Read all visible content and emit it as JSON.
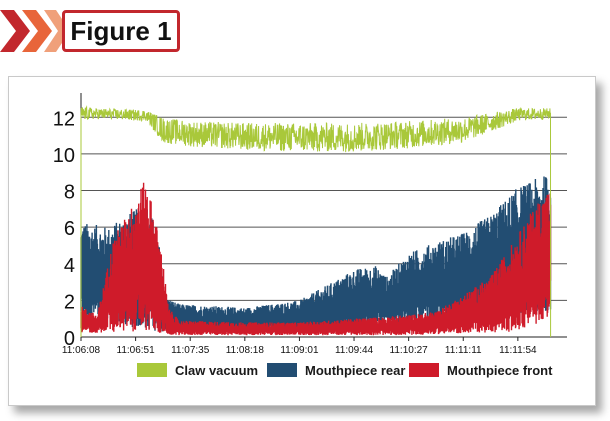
{
  "figure": {
    "label": "Figure 1"
  },
  "colors": {
    "claw": "#a9c83a",
    "rear": "#224d72",
    "front": "#cf1b2a",
    "accent": "#c2272d",
    "chevron_dark": "#c2272d",
    "chevron_light": "#f0a07a",
    "grid": "#555555"
  },
  "chart_data": {
    "type": "line",
    "title": "",
    "xlabel": "",
    "ylabel": "",
    "ylim": [
      0,
      13
    ],
    "yticks": [
      0,
      2,
      4,
      6,
      8,
      10,
      12
    ],
    "grid": true,
    "legend_position": "bottom",
    "x_ticks": [
      "11:06:08",
      "11:06:51",
      "11:07:35",
      "11:08:18",
      "11:09:01",
      "11:09:44",
      "11:10:27",
      "11:11:11",
      "11:11:54"
    ],
    "series": [
      {
        "name": "Claw vacuum",
        "color_key": "claw",
        "style": "line",
        "envelope_min": [
          [
            0,
            11.8
          ],
          [
            0.3,
            11.9
          ],
          [
            1.2,
            11.8
          ],
          [
            1.5,
            10.6
          ],
          [
            2.0,
            10.4
          ],
          [
            3.0,
            10.2
          ],
          [
            4.0,
            10.1
          ],
          [
            5.0,
            10.1
          ],
          [
            6.0,
            10.3
          ],
          [
            7.0,
            10.6
          ],
          [
            8.0,
            11.8
          ],
          [
            8.6,
            11.9
          ]
        ],
        "envelope_max": [
          [
            0,
            12.6
          ],
          [
            0.3,
            12.5
          ],
          [
            1.2,
            12.4
          ],
          [
            1.5,
            12.0
          ],
          [
            2.0,
            11.8
          ],
          [
            3.0,
            11.7
          ],
          [
            4.0,
            11.7
          ],
          [
            5.0,
            11.7
          ],
          [
            6.0,
            11.8
          ],
          [
            7.0,
            12.0
          ],
          [
            8.0,
            12.5
          ],
          [
            8.6,
            12.5
          ]
        ]
      },
      {
        "name": "Mouthpiece rear",
        "color_key": "rear",
        "style": "area",
        "envelope_min": [
          [
            0,
            0.8
          ],
          [
            0.5,
            0.8
          ],
          [
            1.0,
            0.5
          ],
          [
            1.4,
            0.3
          ],
          [
            1.8,
            0.3
          ],
          [
            3.0,
            0.3
          ],
          [
            4.0,
            0.3
          ],
          [
            5.0,
            0.3
          ],
          [
            5.5,
            0.6
          ],
          [
            6.0,
            0.5
          ],
          [
            7.0,
            0.8
          ],
          [
            8.0,
            1.0
          ],
          [
            8.6,
            1.5
          ]
        ],
        "envelope_max": [
          [
            0,
            6.3
          ],
          [
            0.5,
            6.0
          ],
          [
            0.9,
            6.8
          ],
          [
            1.2,
            7.3
          ],
          [
            1.4,
            5.8
          ],
          [
            1.55,
            2.2
          ],
          [
            1.8,
            1.8
          ],
          [
            3.0,
            1.6
          ],
          [
            4.0,
            2.0
          ],
          [
            4.6,
            3.0
          ],
          [
            5.0,
            3.7
          ],
          [
            5.4,
            3.9
          ],
          [
            5.6,
            3.3
          ],
          [
            6.0,
            4.6
          ],
          [
            6.5,
            5.2
          ],
          [
            7.0,
            5.7
          ],
          [
            7.5,
            6.7
          ],
          [
            8.0,
            8.2
          ],
          [
            8.6,
            9.0
          ]
        ]
      },
      {
        "name": "Mouthpiece front",
        "color_key": "front",
        "style": "area",
        "envelope_min": [
          [
            0,
            0.2
          ],
          [
            1.0,
            0.3
          ],
          [
            1.2,
            0.3
          ],
          [
            1.6,
            0.1
          ],
          [
            3.0,
            0.1
          ],
          [
            5.0,
            0.1
          ],
          [
            6.0,
            0.1
          ],
          [
            7.0,
            0.2
          ],
          [
            8.0,
            0.3
          ],
          [
            8.6,
            1.0
          ]
        ],
        "envelope_max": [
          [
            0,
            1.7
          ],
          [
            0.3,
            1.2
          ],
          [
            0.6,
            5.5
          ],
          [
            0.9,
            7.0
          ],
          [
            1.1,
            8.3
          ],
          [
            1.2,
            8.6
          ],
          [
            1.35,
            6.7
          ],
          [
            1.5,
            4.2
          ],
          [
            1.6,
            1.6
          ],
          [
            1.8,
            0.9
          ],
          [
            3.0,
            0.8
          ],
          [
            4.0,
            0.8
          ],
          [
            5.0,
            1.0
          ],
          [
            6.0,
            1.2
          ],
          [
            6.5,
            1.4
          ],
          [
            7.0,
            2.3
          ],
          [
            7.5,
            3.3
          ],
          [
            8.0,
            5.6
          ],
          [
            8.4,
            7.6
          ],
          [
            8.6,
            8.2
          ]
        ]
      }
    ]
  }
}
